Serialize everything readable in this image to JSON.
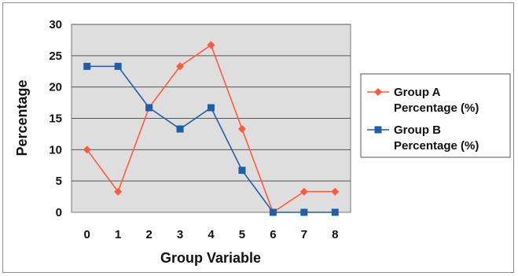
{
  "chart_data": {
    "type": "line",
    "xlabel": "Group Variable",
    "ylabel": "Percentage",
    "categories": [
      "0",
      "1",
      "2",
      "3",
      "4",
      "5",
      "6",
      "7",
      "8"
    ],
    "ylim": [
      0,
      30
    ],
    "yticks": [
      0,
      5,
      10,
      15,
      20,
      25,
      30
    ],
    "grid": true,
    "legend_position": "right",
    "series": [
      {
        "name": "Group A Percentage (%)",
        "legend_lines": [
          "Group A",
          "Percentage (%)"
        ],
        "color": "#ff5b3b",
        "marker": "diamond",
        "values": [
          10,
          3.3,
          16.7,
          23.3,
          26.7,
          13.3,
          0,
          3.3,
          3.3
        ]
      },
      {
        "name": "Group B Percentage (%)",
        "legend_lines": [
          "Group B",
          "Percentage (%)"
        ],
        "color": "#1f5fa8",
        "marker": "square",
        "values": [
          23.3,
          23.3,
          16.7,
          13.3,
          16.7,
          6.7,
          0,
          0,
          0
        ]
      }
    ],
    "plot_background": "#dedede",
    "gridline_color": "#555555"
  }
}
